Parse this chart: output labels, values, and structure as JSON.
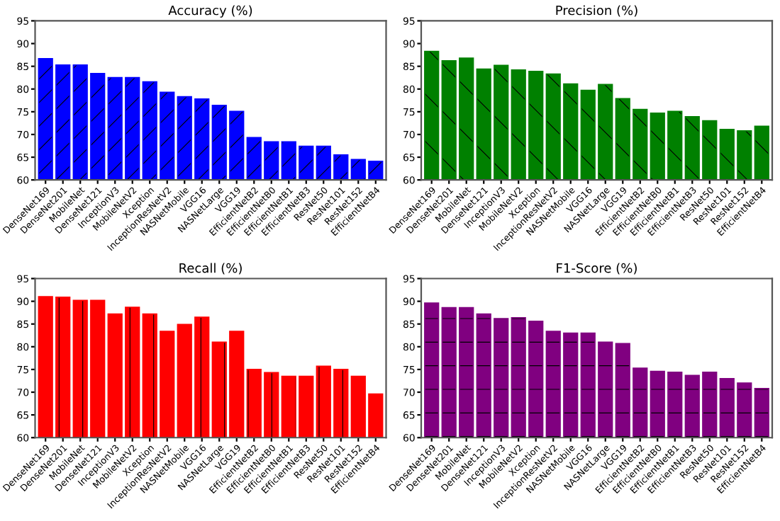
{
  "chart_data": [
    {
      "type": "bar",
      "title": "Accuracy (%)",
      "categories": [
        "DenseNet169",
        "DenseNet201",
        "MobileNet",
        "DenseNet121",
        "InceptionV3",
        "MobileNetV2",
        "Xception",
        "InceptionResNetV2",
        "NASNetMobile",
        "VGG16",
        "NASNetLarge",
        "VGG19",
        "EfficientNetB2",
        "EfficientNetB0",
        "EfficientNetB1",
        "EfficientNetB3",
        "ResNet50",
        "ResNet101",
        "ResNet152",
        "EfficientNetB4"
      ],
      "color": "#0000ff",
      "values": [
        86.7,
        85.3,
        85.3,
        83.4,
        82.5,
        82.5,
        81.6,
        79.3,
        78.3,
        77.8,
        76.4,
        75.1,
        69.3,
        68.4,
        68.4,
        67.4,
        67.4,
        65.5,
        64.5,
        64.1
      ],
      "ylim": [
        60,
        95
      ],
      "yticks": [
        60,
        65,
        70,
        75,
        80,
        85,
        90,
        95
      ],
      "grid": false
    },
    {
      "type": "bar",
      "title": "Precision (%)",
      "categories": [
        "DenseNet169",
        "DenseNet201",
        "MobileNet",
        "DenseNet121",
        "InceptionV3",
        "MobileNetV2",
        "Xception",
        "InceptionResNetV2",
        "NASNetMobile",
        "VGG16",
        "NASNetLarge",
        "VGG19",
        "EfficientNetB2",
        "EfficientNetB0",
        "EfficientNetB1",
        "EfficientNetB3",
        "ResNet50",
        "ResNet101",
        "ResNet152",
        "EfficientNetB4"
      ],
      "color": "#008000",
      "values": [
        88.3,
        86.2,
        86.8,
        84.4,
        85.2,
        84.2,
        83.9,
        83.3,
        81.1,
        79.7,
        81.0,
        77.9,
        75.5,
        74.7,
        75.1,
        73.9,
        73.0,
        71.1,
        70.8,
        71.8
      ],
      "ylim": [
        60,
        95
      ],
      "yticks": [
        60,
        65,
        70,
        75,
        80,
        85,
        90,
        95
      ],
      "grid": false
    },
    {
      "type": "bar",
      "title": "Recall (%)",
      "categories": [
        "DenseNet169",
        "DenseNet201",
        "MobileNet",
        "DenseNet121",
        "InceptionV3",
        "MobileNetV2",
        "Xception",
        "InceptionResNetV2",
        "NASNetMobile",
        "VGG16",
        "NASNetLarge",
        "VGG19",
        "EfficientNetB2",
        "EfficientNetB0",
        "EfficientNetB1",
        "EfficientNetB3",
        "ResNet50",
        "ResNet101",
        "ResNet152",
        "EfficientNetB4"
      ],
      "color": "#ff0000",
      "values": [
        91.0,
        90.9,
        90.2,
        90.2,
        87.2,
        88.7,
        87.2,
        83.4,
        84.9,
        86.5,
        81.0,
        83.4,
        75.0,
        74.3,
        73.5,
        73.5,
        75.7,
        75.0,
        73.5,
        69.6
      ],
      "ylim": [
        60,
        95
      ],
      "yticks": [
        60,
        65,
        70,
        75,
        80,
        85,
        90,
        95
      ],
      "grid": false
    },
    {
      "type": "bar",
      "title": "F1-Score (%)",
      "categories": [
        "DenseNet169",
        "DenseNet201",
        "MobileNet",
        "DenseNet121",
        "InceptionV3",
        "MobileNetV2",
        "Xception",
        "InceptionResNetV2",
        "NASNetMobile",
        "VGG16",
        "NASNetLarge",
        "VGG19",
        "EfficientNetB2",
        "EfficientNetB0",
        "EfficientNetB1",
        "EfficientNetB3",
        "ResNet50",
        "ResNet101",
        "ResNet152",
        "EfficientNetB4"
      ],
      "color": "#800080",
      "values": [
        89.6,
        88.6,
        88.6,
        87.2,
        86.2,
        86.4,
        85.6,
        83.4,
        83.0,
        83.0,
        81.0,
        80.7,
        75.3,
        74.6,
        74.4,
        73.7,
        74.4,
        73.0,
        72.0,
        70.8
      ],
      "ylim": [
        60,
        95
      ],
      "yticks": [
        60,
        65,
        70,
        75,
        80,
        85,
        90,
        95
      ],
      "grid": false
    }
  ]
}
